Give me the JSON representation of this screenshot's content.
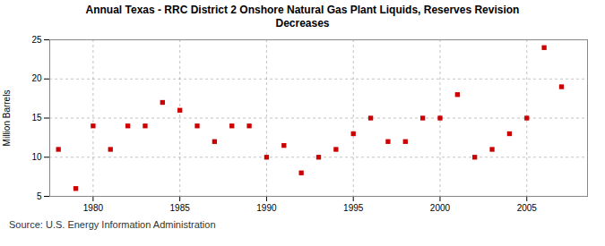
{
  "chart_data": {
    "type": "scatter",
    "title": "Annual Texas - RRC District 2 Onshore Natural Gas Plant Liquids, Reserves Revision\nDecreases",
    "ylabel": "Million Barrels",
    "annotations": [
      "Source: U.S. Energy Information Administration"
    ],
    "x": [
      1978,
      1979,
      1980,
      1981,
      1982,
      1983,
      1984,
      1985,
      1986,
      1987,
      1988,
      1989,
      1990,
      1991,
      1992,
      1993,
      1994,
      1995,
      1996,
      1997,
      1998,
      1999,
      2000,
      2001,
      2002,
      2003,
      2004,
      2005,
      2006,
      2007
    ],
    "values": [
      11.0,
      6.0,
      14.0,
      11.0,
      14.0,
      14.0,
      17.0,
      16.0,
      14.0,
      12.0,
      14.0,
      14.0,
      10.0,
      11.5,
      8.0,
      10.0,
      11.0,
      13.0,
      15.0,
      12.0,
      12.0,
      15.0,
      15.0,
      18.0,
      10.0,
      11.0,
      13.0,
      15.0,
      24.0,
      19.0
    ],
    "color": "#cc0000",
    "marker": "square",
    "xlim": [
      1977.5,
      2008.5
    ],
    "ylim": [
      5,
      25
    ],
    "xticks": [
      1980,
      1985,
      1990,
      1995,
      2000,
      2005
    ],
    "yticks": [
      5,
      10,
      15,
      20,
      25
    ],
    "grid": true
  }
}
